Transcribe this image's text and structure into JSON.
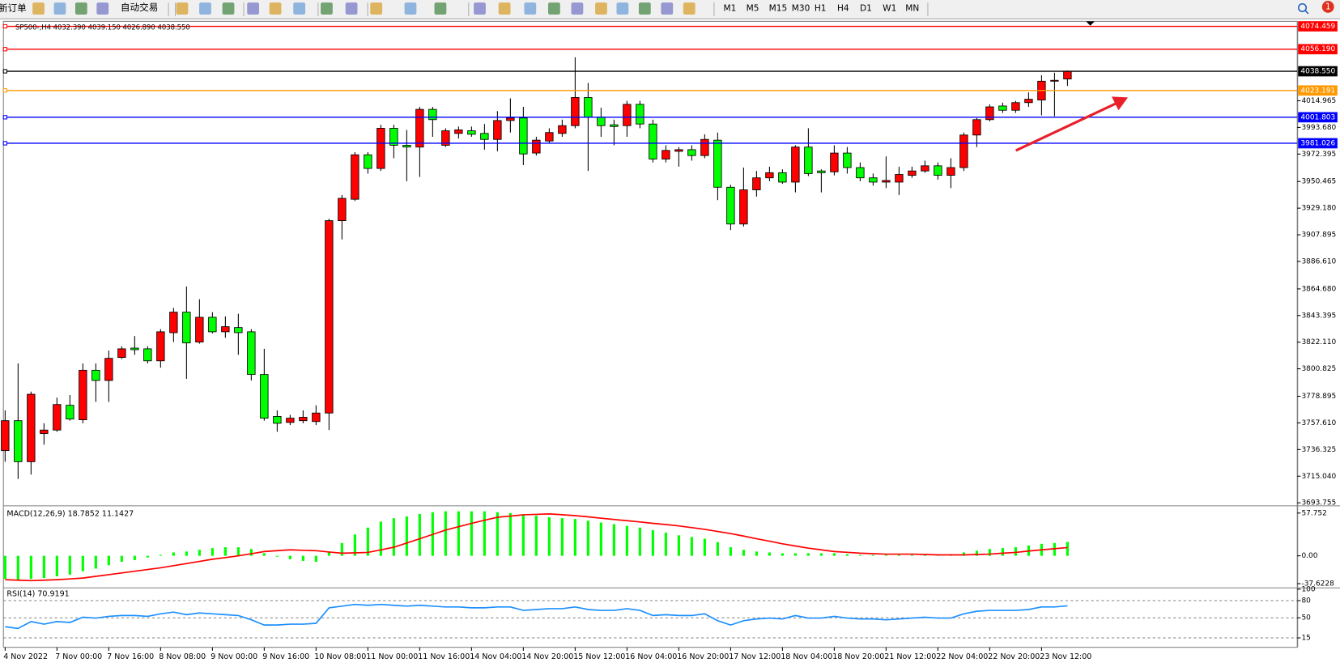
{
  "toolbar": {
    "new_order": "新订单",
    "auto_trading": "自动交易",
    "timeframes": [
      "M1",
      "M5",
      "M15",
      "M30",
      "H1",
      "H4",
      "D1",
      "W1",
      "MN"
    ],
    "notifications": "1"
  },
  "chart_data": [
    {
      "type": "candlestick",
      "title": "SP500-,H4  4032.390 4039.150 4026.890 4038.550",
      "categories": [
        "4 Nov 2022",
        null,
        null,
        null,
        "7 Nov 00:00",
        null,
        null,
        null,
        "7 Nov 16:00",
        null,
        null,
        null,
        "8 Nov 08:00",
        null,
        null,
        null,
        "9 Nov 00:00",
        null,
        null,
        null,
        "9 Nov 16:00",
        null,
        null,
        null,
        "10 Nov 08:00",
        null,
        null,
        null,
        "11 Nov 00:00",
        null,
        null,
        null,
        "11 Nov 16:00",
        null,
        null,
        null,
        "14 Nov 04:00",
        null,
        null,
        null,
        "14 Nov 20:00",
        null,
        null,
        null,
        "15 Nov 12:00",
        null,
        null,
        null,
        "16 Nov 04:00",
        null,
        null,
        null,
        "16 Nov 20:00",
        null,
        null,
        null,
        "17 Nov 12:00",
        null,
        null,
        null,
        "18 Nov 04:00",
        null,
        null,
        null,
        "18 Nov 20:00",
        null,
        null,
        null,
        "21 Nov 12:00",
        null,
        null,
        null,
        "22 Nov 04:00",
        null,
        null,
        null,
        "22 Nov 20:00",
        null,
        null,
        null,
        "23 Nov 12:00",
        null,
        null
      ],
      "open": [
        3735.5,
        3759.4,
        3726.6,
        3749.1,
        3751.9,
        3771.7,
        3760.1,
        3799.7,
        3791.5,
        3809.9,
        3817.4,
        3816.8,
        3807.2,
        3829.7,
        3846.1,
        3822.2,
        3842.0,
        3830.4,
        3833.8,
        3830.4,
        3796.3,
        3762.8,
        3758.0,
        3759.4,
        3758.7,
        3765.5,
        3919.2,
        3936.3,
        3971.8,
        3960.9,
        3993.0,
        3979.4,
        3978.0,
        4008.1,
        3979.4,
        3988.9,
        3991.0,
        3988.9,
        3984.1,
        3999.2,
        4001.2,
        3973.2,
        3982.8,
        3988.9,
        3995.1,
        4017.6,
        4001.9,
        3995.8,
        3995.1,
        4012.1,
        3996.4,
        3968.4,
        3974.6,
        3975.9,
        3971.2,
        3983.5,
        3945.9,
        3916.5,
        3943.8,
        3953.4,
        3957.5,
        3950.0,
        3978.0,
        3958.9,
        3958.2,
        3973.2,
        3961.6,
        3953.4,
        3950.0,
        3950.0,
        3955.4,
        3958.9,
        3963.0,
        3955.4,
        3961.6,
        3987.6,
        3999.9,
        4010.8,
        4007.4,
        4013.5,
        4015.6,
        4030.6,
        4032.39
      ],
      "high": [
        3767.6,
        3805.1,
        3782.6,
        3757.3,
        3777.8,
        3779.9,
        3805.1,
        3805.1,
        3815.4,
        3818.8,
        3827.0,
        3818.8,
        3832.5,
        3849.5,
        3866.6,
        3856.4,
        3846.1,
        3842.7,
        3844.8,
        3832.5,
        3816.8,
        3767.6,
        3764.1,
        3767.6,
        3771.7,
        3920.6,
        3939.7,
        3973.9,
        3973.9,
        3995.8,
        3995.8,
        3991.7,
        4010.1,
        4010.1,
        3993.0,
        3994.4,
        3994.4,
        3996.4,
        4006.7,
        4016.9,
        4010.1,
        3986.2,
        3993.0,
        3999.9,
        4049.7,
        4029.2,
        4009.4,
        3999.9,
        4014.9,
        4014.9,
        3999.9,
        3979.4,
        3978.0,
        3979.4,
        3988.2,
        3989.6,
        3947.9,
        3961.6,
        3958.9,
        3962.3,
        3960.2,
        3979.4,
        3993.0,
        3960.2,
        3979.4,
        3978.0,
        3965.7,
        3956.8,
        3970.5,
        3962.3,
        3962.3,
        3967.1,
        3965.7,
        3969.1,
        3989.6,
        4001.2,
        4012.1,
        4013.5,
        4014.9,
        4021.7,
        4035.4,
        4037.4,
        4039.15
      ],
      "low": [
        3726.6,
        3712.9,
        3716.3,
        3740.2,
        3750.5,
        3759.4,
        3757.3,
        3774.4,
        3774.4,
        3808.6,
        3812.0,
        3805.1,
        3801.7,
        3822.2,
        3792.8,
        3820.9,
        3829.1,
        3825.6,
        3812.0,
        3791.5,
        3759.4,
        3750.5,
        3755.9,
        3757.3,
        3755.9,
        3751.9,
        3904.2,
        3934.9,
        3956.8,
        3958.9,
        3969.1,
        3950.7,
        3954.1,
        3986.2,
        3978.0,
        3984.8,
        3986.2,
        3975.9,
        3974.6,
        3989.6,
        3963.6,
        3971.2,
        3980.7,
        3986.2,
        3993.0,
        3958.9,
        3986.2,
        3979.4,
        3986.2,
        3993.0,
        3965.7,
        3965.7,
        3962.3,
        3967.1,
        3969.1,
        3935.6,
        3911.7,
        3914.5,
        3938.4,
        3950.7,
        3948.6,
        3941.8,
        3954.8,
        3941.8,
        3955.4,
        3956.8,
        3950.7,
        3947.2,
        3945.2,
        3939.7,
        3953.4,
        3957.5,
        3952.0,
        3945.2,
        3958.9,
        3978.0,
        3998.5,
        4005.3,
        4005.3,
        4010.1,
        4003.3,
        4002.6,
        4026.89
      ],
      "close": [
        3759.4,
        3726.6,
        3780.5,
        3751.9,
        3772.3,
        3760.7,
        3799.7,
        3791.5,
        3809.2,
        3816.8,
        3816.1,
        3807.2,
        3830.4,
        3846.1,
        3821.5,
        3842.0,
        3830.4,
        3834.5,
        3829.7,
        3796.3,
        3761.4,
        3757.3,
        3761.4,
        3762.1,
        3765.5,
        3919.2,
        3937.0,
        3971.8,
        3960.9,
        3993.0,
        3979.4,
        3978.0,
        4008.1,
        3999.9,
        3991.0,
        3991.7,
        3988.2,
        3984.1,
        3999.2,
        4001.2,
        3972.5,
        3983.5,
        3989.6,
        3995.1,
        4017.6,
        4001.9,
        3995.1,
        3994.4,
        4012.1,
        3996.4,
        3968.4,
        3975.3,
        3975.9,
        3971.2,
        3984.1,
        3945.9,
        3916.5,
        3943.8,
        3953.4,
        3957.5,
        3950.0,
        3978.0,
        3956.8,
        3957.5,
        3973.2,
        3961.6,
        3953.4,
        3950.0,
        3951.3,
        3956.1,
        3958.9,
        3963.0,
        3955.4,
        3961.6,
        3987.6,
        3999.9,
        4010.1,
        4007.4,
        4013.5,
        4016.2,
        4030.6,
        4031.3,
        4038.55
      ],
      "up_color": "#ff0000",
      "down_color": "#00ff00",
      "ylim": [
        3692.4,
        4078.4
      ],
      "yticks": [
        4014.965,
        {
          "value": 3993.68,
          "label": "3993.680"
        },
        3972.395,
        3950.465,
        {
          "value": 3929.18,
          "label": "3929.180"
        },
        3907.895,
        {
          "value": 3886.61,
          "label": "3886.610"
        },
        {
          "value": 3864.68,
          "label": "3864.680"
        },
        3843.395,
        {
          "value": 3822.11,
          "label": "3822.110"
        },
        3800.825,
        3778.895,
        {
          "value": 3757.61,
          "label": "3757.610"
        },
        3736.325,
        {
          "value": 3715.04,
          "label": "3715.040"
        },
        3693.755
      ],
      "hlines": [
        {
          "value": 4074.459,
          "color": "#ff0000"
        },
        {
          "value": 4056.19,
          "label": "4056.190",
          "color": "#ff0000"
        },
        {
          "value": 4038.55,
          "label": "4038.550",
          "color": "#000000"
        },
        {
          "value": 4023.191,
          "color": "#ff9900"
        },
        {
          "value": 4001.803,
          "color": "#0000ff"
        },
        {
          "value": 3981.026,
          "color": "#0000ff"
        }
      ]
    },
    {
      "type": "indicator",
      "title": "MACD(12,26,9) 18.7852 11.1427",
      "series": [
        {
          "type": "bar",
          "color": "#00ff00",
          "values": [
            -31.2,
            -32.3,
            -31.2,
            -30.0,
            -27.7,
            -25.4,
            -20.8,
            -17.3,
            -12.7,
            -8.1,
            -5.8,
            -2.3,
            1.2,
            4.6,
            5.8,
            8.1,
            10.4,
            11.6,
            11.6,
            9.2,
            3.5,
            -1.2,
            -4.6,
            -6.9,
            -8.1,
            5.8,
            17.3,
            28.9,
            38.1,
            46.2,
            50.8,
            53.1,
            56.6,
            58.9,
            60.1,
            60.1,
            60.1,
            60.1,
            58.9,
            57.8,
            55.4,
            54.3,
            52.0,
            50.8,
            49.7,
            47.4,
            45.0,
            42.7,
            40.4,
            38.1,
            34.7,
            31.2,
            27.7,
            25.4,
            23.1,
            18.5,
            11.6,
            8.1,
            5.8,
            4.6,
            3.5,
            3.5,
            3.5,
            3.5,
            3.5,
            2.3,
            1.2,
            1.2,
            1.2,
            1.2,
            1.2,
            1.2,
            1.2,
            2.3,
            4.6,
            6.9,
            9.2,
            10.4,
            11.6,
            13.9,
            16.2,
            17.3,
            18.7852
          ]
        },
        {
          "type": "line",
          "color": "#ff0000",
          "values": [
            -32.3,
            -32.9,
            -33.5,
            -32.9,
            -32.3,
            -31.2,
            -30.0,
            -27.7,
            -25.4,
            -23.1,
            -20.8,
            -18.5,
            -16.2,
            -13.3,
            -10.4,
            -7.5,
            -4.6,
            -2.3,
            0,
            2.9,
            5.8,
            7.0,
            8.1,
            7.5,
            6.9,
            5.2,
            3.5,
            4.0,
            4.6,
            8.1,
            11.6,
            17.3,
            23.1,
            28.9,
            34.7,
            39.3,
            43.9,
            48.0,
            52.0,
            53.7,
            55.4,
            56.0,
            56.6,
            55.5,
            54.3,
            52.6,
            50.8,
            49.1,
            47.4,
            45.7,
            43.9,
            42.2,
            40.4,
            38.1,
            35.8,
            32.9,
            30.0,
            26.6,
            23.1,
            19.7,
            16.2,
            13.3,
            10.4,
            8.1,
            5.8,
            4.7,
            3.5,
            2.9,
            2.3,
            2.3,
            2.3,
            1.8,
            1.2,
            1.2,
            1.2,
            1.8,
            2.3,
            3.5,
            4.6,
            6.4,
            8.1,
            9.6,
            11.1427
          ]
        }
      ],
      "ylim": [
        -41.6,
        65.8
      ],
      "yticks": [
        57.752,
        {
          "value": 0,
          "label": "0.00"
        },
        -37.6228
      ]
    },
    {
      "type": "indicator",
      "title": "RSI(14) 70.9191",
      "series": [
        {
          "type": "line",
          "color": "#1e90ff",
          "values": [
            34.5,
            31.5,
            43.5,
            39.0,
            43.5,
            42.0,
            51.0,
            49.5,
            52.5,
            54.0,
            54.0,
            52.5,
            57.0,
            60.0,
            55.5,
            58.5,
            57.0,
            55.5,
            54.0,
            46.5,
            37.5,
            37.5,
            39.0,
            39.0,
            40.5,
            67.5,
            70.5,
            73.5,
            72.0,
            73.5,
            72.0,
            70.5,
            72.0,
            70.5,
            69.0,
            69.0,
            67.5,
            67.5,
            69.0,
            69.0,
            63.0,
            64.5,
            66.0,
            66.0,
            69.0,
            64.5,
            63.0,
            63.0,
            66.0,
            63.0,
            54.0,
            55.5,
            54.0,
            54.0,
            57.0,
            45.0,
            37.5,
            45.0,
            48.0,
            49.5,
            48.0,
            54.0,
            49.5,
            49.5,
            52.5,
            49.5,
            48.0,
            48.0,
            46.5,
            48.0,
            49.5,
            51.0,
            49.5,
            49.5,
            57.0,
            61.5,
            63.0,
            63.0,
            63.0,
            64.5,
            69.0,
            69.0,
            70.9191
          ]
        }
      ],
      "ylim": [
        0,
        100
      ],
      "yticks": [
        100,
        80,
        50,
        15
      ]
    }
  ]
}
